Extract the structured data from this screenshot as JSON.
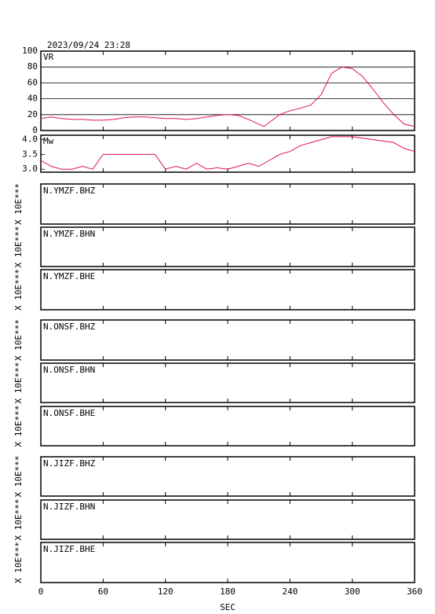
{
  "title": "2023/09/24 23:28",
  "xlim": [
    0,
    360
  ],
  "xticks": [
    0,
    60,
    120,
    180,
    240,
    300,
    360
  ],
  "xlabel": "SEC",
  "chart_data": [
    {
      "type": "line",
      "label": "VR",
      "color": "#e0105a",
      "x": [
        0,
        10,
        20,
        30,
        40,
        50,
        60,
        70,
        80,
        90,
        100,
        110,
        120,
        130,
        140,
        150,
        160,
        170,
        180,
        190,
        200,
        210,
        215,
        220,
        230,
        240,
        250,
        260,
        270,
        280,
        290,
        300,
        310,
        320,
        330,
        340,
        350,
        360
      ],
      "values": [
        15,
        17,
        15,
        14,
        14,
        13,
        13,
        14,
        16,
        17,
        17,
        16,
        15,
        15,
        14,
        15,
        17,
        19,
        20,
        19,
        14,
        8,
        5,
        10,
        20,
        25,
        28,
        32,
        45,
        72,
        80,
        78,
        68,
        52,
        35,
        20,
        8,
        5
      ],
      "ylim": [
        0,
        100
      ],
      "yticks": [
        0,
        20,
        40,
        60,
        80,
        100
      ],
      "grid": true
    },
    {
      "type": "line",
      "label": "Mw",
      "color": "#e0105a",
      "x": [
        0,
        10,
        20,
        30,
        40,
        50,
        60,
        70,
        80,
        90,
        100,
        110,
        120,
        130,
        140,
        150,
        160,
        170,
        180,
        190,
        200,
        210,
        220,
        230,
        240,
        250,
        260,
        270,
        280,
        290,
        300,
        310,
        320,
        330,
        340,
        350,
        360
      ],
      "values": [
        3.3,
        3.1,
        3.0,
        3.0,
        3.1,
        3.0,
        3.5,
        3.5,
        3.5,
        3.5,
        3.5,
        3.5,
        3.0,
        3.1,
        3.0,
        3.2,
        3.0,
        3.05,
        3.0,
        3.1,
        3.2,
        3.1,
        3.3,
        3.5,
        3.6,
        3.8,
        3.9,
        4.0,
        4.1,
        4.1,
        4.1,
        4.05,
        4.0,
        3.95,
        3.9,
        3.7,
        3.6
      ],
      "ylim": [
        2.9,
        4.15
      ],
      "yticks": [
        {
          "value": 3.0,
          "label": "3.0"
        },
        3.5,
        {
          "value": 4.0,
          "label": "4.0"
        }
      ],
      "grid": false
    }
  ],
  "traces": [
    {
      "name": "N.YMZF.BHZ",
      "ylabel": "X 10E***"
    },
    {
      "name": "N.YMZF.BHN",
      "ylabel": "X 10E***"
    },
    {
      "name": "N.YMZF.BHE",
      "ylabel": "X 10E***"
    },
    {
      "name": "N.ONSF.BHZ",
      "ylabel": "X 10E***"
    },
    {
      "name": "N.ONSF.BHN",
      "ylabel": "X 10E***"
    },
    {
      "name": "N.ONSF.BHE",
      "ylabel": "X 10E***"
    },
    {
      "name": "N.JIZF.BHZ",
      "ylabel": "X 10E***"
    },
    {
      "name": "N.JIZF.BHN",
      "ylabel": "X 10E***"
    },
    {
      "name": "N.JIZF.BHE",
      "ylabel": "X 10E***"
    }
  ]
}
